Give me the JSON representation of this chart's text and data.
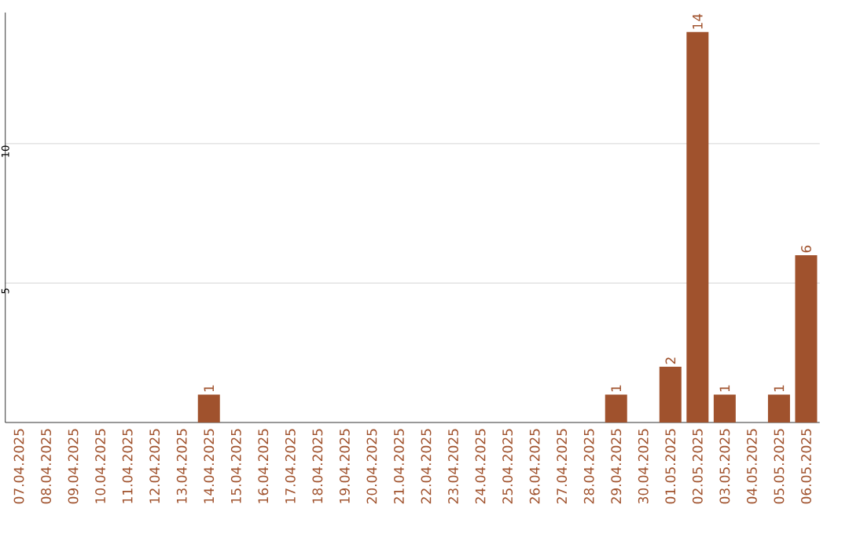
{
  "chart_data": {
    "type": "bar",
    "categories": [
      "07.04.2025",
      "08.04.2025",
      "09.04.2025",
      "10.04.2025",
      "11.04.2025",
      "12.04.2025",
      "13.04.2025",
      "14.04.2025",
      "15.04.2025",
      "16.04.2025",
      "17.04.2025",
      "18.04.2025",
      "19.04.2025",
      "20.04.2025",
      "21.04.2025",
      "22.04.2025",
      "23.04.2025",
      "24.04.2025",
      "25.04.2025",
      "26.04.2025",
      "27.04.2025",
      "28.04.2025",
      "29.04.2025",
      "30.04.2025",
      "01.05.2025",
      "02.05.2025",
      "03.05.2025",
      "04.05.2025",
      "05.05.2025",
      "06.05.2025"
    ],
    "values": [
      0,
      0,
      0,
      0,
      0,
      0,
      0,
      1,
      0,
      0,
      0,
      0,
      0,
      0,
      0,
      0,
      0,
      0,
      0,
      0,
      0,
      0,
      1,
      0,
      2,
      14,
      1,
      0,
      1,
      6
    ],
    "value_labels": [
      null,
      null,
      null,
      null,
      null,
      null,
      null,
      "1",
      null,
      null,
      null,
      null,
      null,
      null,
      null,
      null,
      null,
      null,
      null,
      null,
      null,
      null,
      "1",
      null,
      "2",
      "14",
      "1",
      null,
      "1",
      "6"
    ],
    "color": "#a0522d",
    "ylim": [
      0,
      14.7
    ],
    "yticks": [
      5,
      10
    ],
    "grid": "y"
  }
}
